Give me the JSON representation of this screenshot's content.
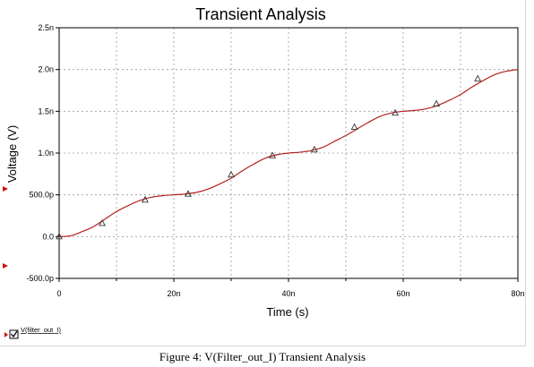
{
  "caption": "Figure 4: V(Filter_out_I) Transient Analysis",
  "chart_data": {
    "type": "line",
    "title": "Transient Analysis",
    "xlabel": "Time (s)",
    "ylabel": "Voltage (V)",
    "xlim": [
      0,
      80
    ],
    "ylim": [
      -0.5,
      2.5
    ],
    "x_ticks": [
      0,
      20,
      40,
      60,
      80
    ],
    "x_tick_labels": [
      "0",
      "20n",
      "40n",
      "60n",
      "80n"
    ],
    "y_ticks": [
      -0.5,
      0,
      0.5,
      1.0,
      1.5,
      2.0,
      2.5
    ],
    "y_tick_labels": [
      "-500.0p",
      "0.0",
      "500.0p",
      "1.0n",
      "1.5n",
      "2.0n",
      "2.5n"
    ],
    "grid": true,
    "legend_position": "bottom-left",
    "series": [
      {
        "name": "V(filter_out_I)",
        "color": "#b22222",
        "marker": "triangle",
        "x": [
          0,
          2,
          4,
          6,
          8,
          10,
          12,
          14,
          16,
          18,
          20,
          22,
          24,
          26,
          28,
          30,
          32,
          34,
          36,
          38,
          40,
          42,
          44,
          46,
          48,
          50,
          52,
          54,
          56,
          58,
          60,
          62,
          64,
          66,
          68,
          70,
          72,
          74,
          76,
          78,
          80
        ],
        "y": [
          0.0,
          0.01,
          0.06,
          0.12,
          0.21,
          0.3,
          0.37,
          0.43,
          0.47,
          0.49,
          0.5,
          0.51,
          0.53,
          0.57,
          0.63,
          0.7,
          0.79,
          0.87,
          0.94,
          0.98,
          1.0,
          1.01,
          1.03,
          1.07,
          1.14,
          1.21,
          1.29,
          1.37,
          1.44,
          1.48,
          1.5,
          1.51,
          1.53,
          1.57,
          1.63,
          1.7,
          1.79,
          1.87,
          1.94,
          1.98,
          2.0
        ],
        "markers_x": [
          0,
          7.5,
          15,
          22.5,
          30,
          37.2,
          44.5,
          51.5,
          58.6,
          65.8,
          73
        ],
        "markers_y": [
          0.0,
          0.16,
          0.44,
          0.51,
          0.74,
          0.97,
          1.04,
          1.31,
          1.48,
          1.59,
          1.89
        ]
      }
    ]
  }
}
